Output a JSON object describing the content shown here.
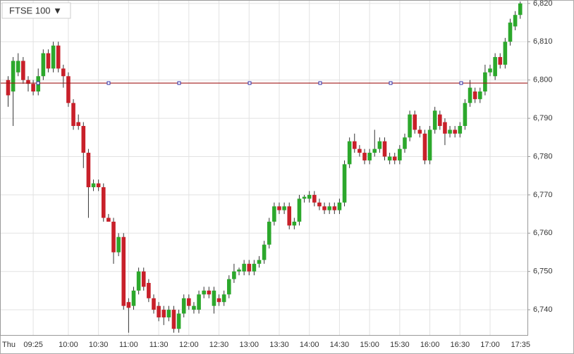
{
  "chart_data": {
    "type": "candlestick",
    "title": "FTSE 100 ▼",
    "categories": [
      "Thu",
      null,
      null,
      null,
      null,
      "09:25",
      null,
      null,
      null,
      null,
      null,
      null,
      "10:00",
      null,
      null,
      null,
      null,
      null,
      "10:30",
      null,
      null,
      null,
      null,
      null,
      "11:00",
      null,
      null,
      null,
      null,
      null,
      "11:30",
      null,
      null,
      null,
      null,
      null,
      "12:00",
      null,
      null,
      null,
      null,
      null,
      "12:30",
      null,
      null,
      null,
      null,
      null,
      "13:00",
      null,
      null,
      null,
      null,
      null,
      "13:30",
      null,
      null,
      null,
      null,
      null,
      "14:00",
      null,
      null,
      null,
      null,
      null,
      "14:30",
      null,
      null,
      null,
      null,
      null,
      "15:00",
      null,
      null,
      null,
      null,
      null,
      "15:30",
      null,
      null,
      null,
      null,
      null,
      "16:00",
      null,
      null,
      null,
      null,
      null,
      "16:30",
      null,
      null,
      null,
      null,
      null,
      "17:00",
      null,
      null,
      null,
      null,
      null,
      "17:35"
    ],
    "open": [
      6800,
      6797,
      6802,
      6805,
      6800,
      6799,
      6797,
      6801,
      6807,
      6803,
      6809,
      6803,
      6801,
      6794,
      6789,
      6788,
      6781,
      6772,
      6773,
      6772,
      6764,
      6763,
      6755,
      6759,
      6742,
      6741,
      6745,
      6750,
      6747,
      6743,
      6741,
      6740,
      6738,
      6740,
      6735,
      6739,
      6743,
      6740,
      6740,
      6744,
      6745,
      6741,
      6743,
      6742,
      6744,
      6748,
      6750,
      6750,
      6752,
      6750,
      6752,
      6753,
      6757,
      6763,
      6767,
      6766,
      6767,
      6762,
      6763,
      6769,
      6769,
      6770,
      6768,
      6767,
      6766,
      6767,
      6766,
      6768,
      6778,
      6784,
      6782,
      6781,
      6779,
      6781,
      6782,
      6784,
      6779,
      6780,
      6779,
      6782,
      6785,
      6791,
      6787,
      6786,
      6779,
      6787,
      6791,
      6789,
      6786,
      6787,
      6786,
      6788,
      6794,
      6797,
      6795,
      6797,
      6802,
      6801,
      6806,
      6804,
      6810,
      6814,
      6817
    ],
    "high": [
      6801,
      6806,
      6807,
      6806,
      6801,
      6800,
      6803,
      6808,
      6808,
      6810,
      6810,
      6804,
      6802,
      6795,
      6791,
      6789,
      6782,
      6774,
      6774,
      6773,
      6765,
      6764,
      6760,
      6760,
      6743,
      6746,
      6751,
      6751,
      6748,
      6744,
      6742,
      6741,
      6741,
      6741,
      6740,
      6744,
      6744,
      6742,
      6745,
      6746,
      6746,
      6746,
      6744,
      6745,
      6749,
      6752,
      6751,
      6753,
      6753,
      6753,
      6754,
      6758,
      6764,
      6768,
      6768,
      6768,
      6768,
      6764,
      6770,
      6770,
      6771,
      6771,
      6769,
      6768,
      6768,
      6768,
      6769,
      6779,
      6785,
      6786,
      6783,
      6782,
      6782,
      6787,
      6785,
      6785,
      6781,
      6781,
      6783,
      6786,
      6792,
      6792,
      6788,
      6787,
      6788,
      6793,
      6792,
      6790,
      6788,
      6788,
      6789,
      6795,
      6800,
      6798,
      6798,
      6804,
      6804,
      6807,
      6807,
      6811,
      6816,
      6818,
      6820.5
    ],
    "low": [
      6793,
      6788,
      6801,
      6799,
      6797,
      6796,
      6796,
      6800,
      6802,
      6802,
      6802,
      6798,
      6793,
      6787,
      6787,
      6777,
      6764,
      6771,
      6771,
      6763,
      6763,
      6752,
      6754,
      6740,
      6734,
      6740,
      6744,
      6745,
      6742,
      6739,
      6737,
      6736,
      6737,
      6734,
      6734,
      6738,
      6740,
      6739,
      6739,
      6743,
      6743,
      6739,
      6741,
      6741,
      6743,
      6747,
      6749,
      6749,
      6749,
      6749,
      6751,
      6752,
      6756,
      6762,
      6765,
      6765,
      6761,
      6761,
      6762,
      6768,
      6768,
      6767,
      6766,
      6765,
      6765,
      6765,
      6765,
      6767,
      6777,
      6781,
      6780,
      6778,
      6778,
      6780,
      6781,
      6779,
      6778,
      6778,
      6778,
      6781,
      6784,
      6786,
      6785,
      6778,
      6778,
      6786,
      6787,
      6783,
      6785,
      6785,
      6785,
      6787,
      6793,
      6794,
      6794,
      6796,
      6801,
      6800,
      6803,
      6803,
      6809,
      6813,
      6816
    ],
    "close": [
      6796,
      6805,
      6805,
      6800,
      6799,
      6797,
      6801,
      6807,
      6803,
      6809,
      6803,
      6801,
      6794,
      6788,
      6788,
      6781,
      6772,
      6773,
      6772,
      6764,
      6763,
      6755,
      6759,
      6741,
      6740.5,
      6745,
      6750,
      6746,
      6743,
      6740,
      6738,
      6738,
      6740,
      6735,
      6739,
      6743,
      6741,
      6741,
      6744,
      6745,
      6744,
      6745,
      6742,
      6744,
      6748,
      6750,
      6750.5,
      6752,
      6750,
      6752,
      6753,
      6757,
      6763,
      6767,
      6766,
      6767,
      6762,
      6763,
      6769,
      6769.5,
      6770,
      6768,
      6767,
      6766,
      6767,
      6766,
      6768,
      6778,
      6784,
      6782,
      6781,
      6779,
      6781,
      6782,
      6784,
      6780,
      6780,
      6779,
      6782,
      6785,
      6791,
      6787,
      6786,
      6779,
      6787,
      6792,
      6788,
      6786,
      6787,
      6786,
      6788,
      6794,
      6798,
      6795,
      6797,
      6802,
      6803,
      6806,
      6804,
      6810,
      6815,
      6817,
      6820
    ],
    "up_color": "#2ca82c",
    "down_color": "#c8202a",
    "reference_line": 6799.2,
    "reference_color": "#a01818",
    "ylim": [
      6733.4,
      6820.9
    ],
    "yticks": [
      {
        "value": 6740,
        "label": "6,740"
      },
      {
        "value": 6750,
        "label": "6,750"
      },
      {
        "value": 6760,
        "label": "6,760"
      },
      {
        "value": 6770,
        "label": "6,770"
      },
      {
        "value": 6780,
        "label": "6,780"
      },
      {
        "value": 6790,
        "label": "6,790"
      },
      {
        "value": 6800,
        "label": "6,800"
      },
      {
        "value": 6810,
        "label": "6,810"
      },
      {
        "value": 6820,
        "label": "6,820"
      }
    ],
    "grid": true
  }
}
